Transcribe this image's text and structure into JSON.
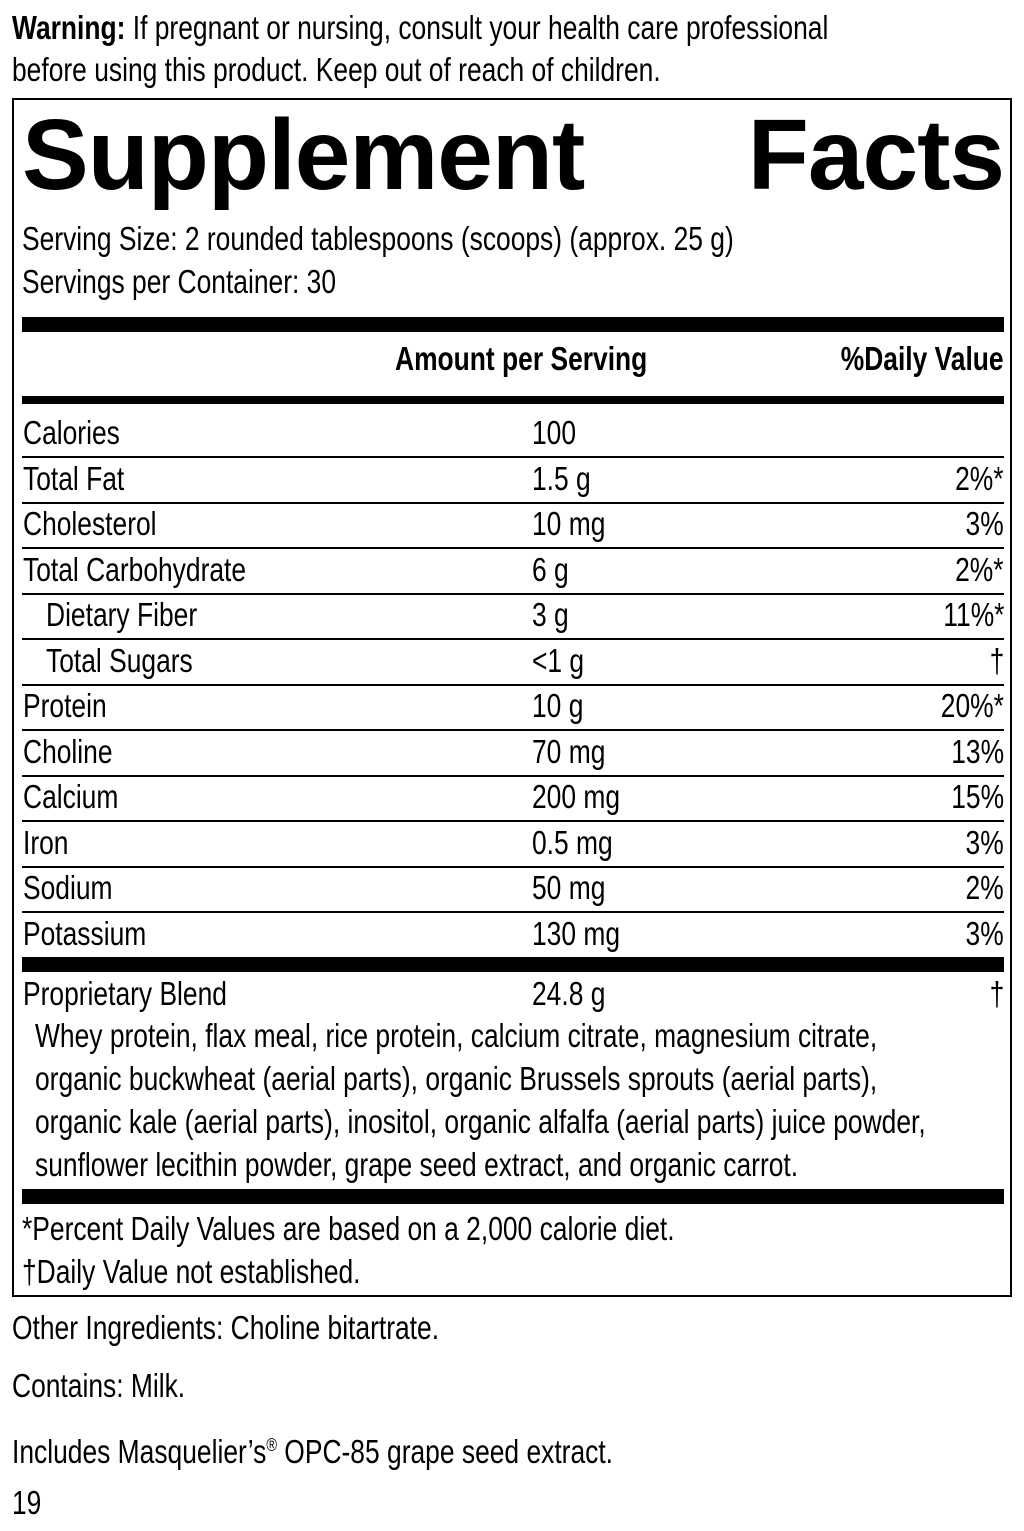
{
  "warning": {
    "label": "Warning:",
    "text_line1": "If pregnant or nursing, consult your health care professional",
    "text_line2": "before using this product. Keep out of reach of children."
  },
  "title": {
    "word1": "Supplement",
    "word2": "Facts"
  },
  "serving_size": "Serving Size: 2 rounded tablespoons (scoops) (approx. 25 g)",
  "servings_per_container": "Servings per Container: 30",
  "header": {
    "amount": "Amount per Serving",
    "dv": "%Daily Value"
  },
  "rows": [
    {
      "name": "Calories",
      "amount": "100",
      "dv": "",
      "indent": false
    },
    {
      "name": "Total Fat",
      "amount": "1.5 g",
      "dv": "2%*",
      "indent": false
    },
    {
      "name": "Cholesterol",
      "amount": "10 mg",
      "dv": "3%",
      "indent": false
    },
    {
      "name": "Total Carbohydrate",
      "amount": "6 g",
      "dv": "2%*",
      "indent": false
    },
    {
      "name": "Dietary Fiber",
      "amount": "3 g",
      "dv": "11%*",
      "indent": true
    },
    {
      "name": "Total Sugars",
      "amount": "<1 g",
      "dv": "†",
      "indent": true
    },
    {
      "name": "Protein",
      "amount": "10 g",
      "dv": "20%*",
      "indent": false
    },
    {
      "name": "Choline",
      "amount": "70 mg",
      "dv": "13%",
      "indent": false
    },
    {
      "name": "Calcium",
      "amount": "200 mg",
      "dv": "15%",
      "indent": false
    },
    {
      "name": "Iron",
      "amount": "0.5 mg",
      "dv": "3%",
      "indent": false
    },
    {
      "name": "Sodium",
      "amount": "50 mg",
      "dv": "2%",
      "indent": false
    },
    {
      "name": "Potassium",
      "amount": "130 mg",
      "dv": "3%",
      "indent": false
    }
  ],
  "blend": {
    "name": "Proprietary Blend",
    "amount": "24.8 g",
    "dv": "†",
    "ingredients": [
      "Whey protein, flax meal, rice protein, calcium citrate, magnesium citrate,",
      "organic buckwheat (aerial parts), organic Brussels sprouts (aerial parts),",
      "organic kale (aerial parts), inositol, organic alfalfa (aerial parts) juice powder,",
      "sunflower lecithin powder, grape seed extract, and organic carrot."
    ]
  },
  "footnotes": [
    "*Percent Daily Values are based on a 2,000 calorie diet.",
    "†Daily Value not established."
  ],
  "other_ingredients": "Other Ingredients: Choline bitartrate.",
  "contains": "Contains: Milk.",
  "includes": {
    "before": "Includes Masquelier’s",
    "reg": "®",
    "after": " OPC-85 grape seed extract."
  },
  "page_number": "19"
}
